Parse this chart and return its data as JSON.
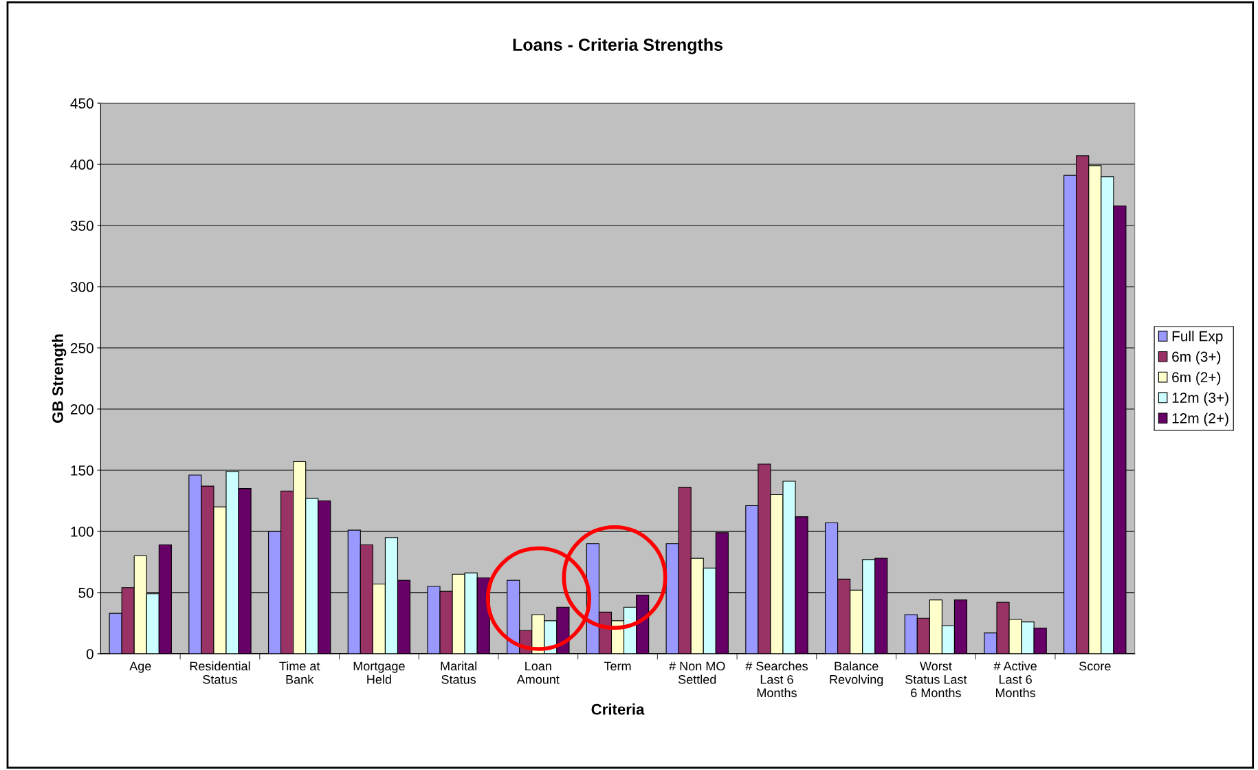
{
  "chart_data": {
    "type": "bar",
    "title": "Loans - Criteria Strengths",
    "xlabel": "Criteria",
    "ylabel": "GB Strength",
    "categories": [
      "Age",
      "Residential\nStatus",
      "Time at\nBank",
      "Mortgage\nHeld",
      "Marital\nStatus",
      "Loan\nAmount",
      "Term",
      "# Non MO\nSettled",
      "# Searches\nLast 6\nMonths",
      "Balance\nRevolving",
      "Worst\nStatus Last\n6 Months",
      "# Active\nLast 6\nMonths",
      "Score"
    ],
    "series": [
      {
        "name": "Full Exp",
        "color": "#9999ff",
        "values": [
          33,
          146,
          100,
          101,
          55,
          60,
          90,
          90,
          121,
          107,
          32,
          17,
          391
        ]
      },
      {
        "name": "6m (3+)",
        "color": "#993366",
        "values": [
          54,
          137,
          133,
          89,
          51,
          19,
          34,
          136,
          155,
          61,
          29,
          42,
          407
        ]
      },
      {
        "name": "6m (2+)",
        "color": "#ffffcc",
        "values": [
          80,
          120,
          157,
          57,
          65,
          32,
          27,
          78,
          130,
          52,
          44,
          28,
          399
        ]
      },
      {
        "name": "12m (3+)",
        "color": "#ccffff",
        "values": [
          49,
          149,
          127,
          95,
          66,
          27,
          38,
          70,
          141,
          77,
          23,
          26,
          390
        ]
      },
      {
        "name": "12m (2+)",
        "color": "#660066",
        "values": [
          89,
          135,
          125,
          60,
          62,
          38,
          48,
          99,
          112,
          78,
          44,
          21,
          366
        ]
      }
    ],
    "ylim": [
      0,
      450
    ],
    "yticks": [
      0,
      50,
      100,
      150,
      200,
      250,
      300,
      350,
      400,
      450
    ],
    "grid": "y",
    "legend": "right"
  }
}
